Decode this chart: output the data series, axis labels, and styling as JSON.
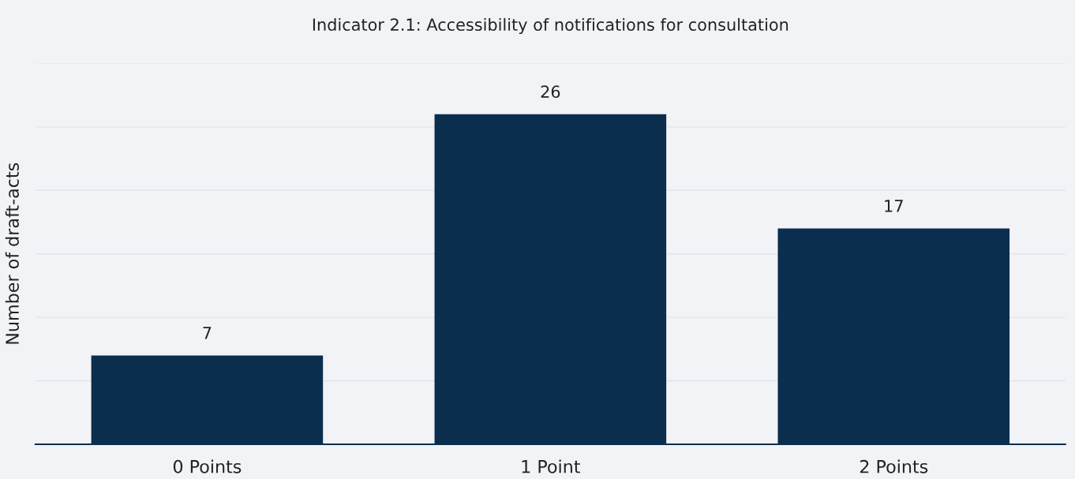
{
  "chart_data": {
    "type": "bar",
    "title": "Indicator 2.1: Accessibility of notifications for consultation",
    "ylabel": "Number of draft-acts",
    "categories": [
      "0 Points",
      "1 Point",
      "2 Points"
    ],
    "values": [
      7,
      26,
      17
    ],
    "color": "#0b2d4e",
    "ylim": [
      0,
      30
    ],
    "yticks": [
      {
        "value": 0,
        "label": null
      },
      {
        "value": 5,
        "label": null
      },
      {
        "value": 10,
        "label": null
      },
      {
        "value": 15,
        "label": null
      },
      {
        "value": 20,
        "label": null
      },
      {
        "value": 25,
        "label": null
      },
      {
        "value": 30,
        "label": null
      }
    ],
    "grid": "y",
    "data_labels": true,
    "tick_labels": "x"
  }
}
